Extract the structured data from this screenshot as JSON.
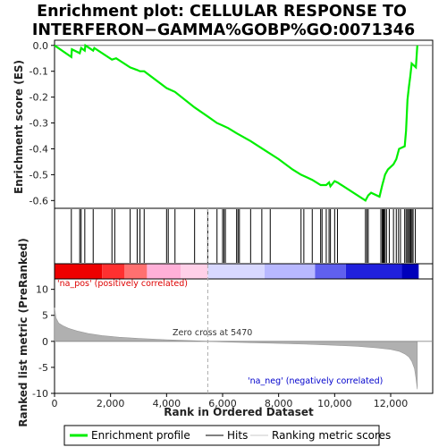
{
  "chart_data": {
    "type": "line",
    "title_line1": "Enrichment plot: CELLULAR RESPONSE TO",
    "title_line2": "INTERFERON−GAMMA%GOBP%GO:0071346",
    "xlabel": "Rank in Ordered Dataset",
    "ylabel_top": "Enrichment score (ES)",
    "ylabel_bottom": "Ranked list metric (PreRanked)",
    "xlim": [
      0,
      13500
    ],
    "x_ticks": [
      0,
      2000,
      4000,
      6000,
      8000,
      10000,
      12000
    ],
    "x_tick_labels": [
      "0",
      "2,000",
      "4,000",
      "6,000",
      "8,000",
      "10,000",
      "12,000"
    ],
    "es_ylim": [
      -0.63,
      0.02
    ],
    "es_ticks": [
      0.0,
      -0.1,
      -0.2,
      -0.3,
      -0.4,
      -0.5,
      -0.6
    ],
    "es_tick_labels": [
      "0.0",
      "-0.1",
      "-0.2",
      "-0.3",
      "-0.4",
      "-0.5",
      "-0.6"
    ],
    "metric_ylim": [
      -10,
      12
    ],
    "metric_ticks": [
      10,
      5,
      0,
      -5,
      -10
    ],
    "metric_tick_labels": [
      "10",
      "5",
      "0",
      "-5",
      "-10"
    ],
    "zero_cross_label": "Zero cross at 5470",
    "zero_cross_rank": 5470,
    "pos_label": "'na_pos' (positively correlated)",
    "neg_label": "'na_neg' (negatively correlated)",
    "colors": {
      "es_line": "#00ee00",
      "metric_fill": "#b0b0b0",
      "pos_text": "#dd0000",
      "neg_text": "#0000cc"
    },
    "legend": [
      {
        "label": "Enrichment profile",
        "style": "green-line"
      },
      {
        "label": "Hits",
        "style": "black-line"
      },
      {
        "label": "Ranking metric scores",
        "style": "gray-line"
      }
    ],
    "es_profile": {
      "x": [
        0,
        600,
        620,
        900,
        950,
        1080,
        1100,
        1380,
        1420,
        2050,
        2200,
        2700,
        2950,
        3050,
        3200,
        4000,
        4100,
        4300,
        5000,
        5470,
        5800,
        6000,
        6200,
        6500,
        7000,
        7500,
        8000,
        8500,
        8800,
        9000,
        9200,
        9500,
        9700,
        9800,
        9850,
        10000,
        10100,
        11100,
        11200,
        11300,
        11600,
        11700,
        11750,
        11800,
        11900,
        12000,
        12100,
        12200,
        12300,
        12500,
        12550,
        12600,
        12650,
        12700,
        12750,
        12900,
        12950
      ],
      "y": [
        0.0,
        -0.045,
        -0.015,
        -0.03,
        -0.01,
        -0.02,
        0.0,
        -0.02,
        -0.01,
        -0.055,
        -0.05,
        -0.085,
        -0.095,
        -0.1,
        -0.1,
        -0.165,
        -0.17,
        -0.18,
        -0.24,
        -0.275,
        -0.3,
        -0.31,
        -0.32,
        -0.34,
        -0.37,
        -0.405,
        -0.44,
        -0.48,
        -0.5,
        -0.51,
        -0.52,
        -0.54,
        -0.54,
        -0.53,
        -0.545,
        -0.525,
        -0.53,
        -0.6,
        -0.58,
        -0.57,
        -0.585,
        -0.54,
        -0.52,
        -0.5,
        -0.48,
        -0.47,
        -0.46,
        -0.44,
        -0.4,
        -0.39,
        -0.33,
        -0.21,
        -0.16,
        -0.12,
        -0.07,
        -0.085,
        0.0
      ]
    },
    "hits": [
      600,
      900,
      950,
      1080,
      1380,
      2050,
      2150,
      2700,
      2950,
      3050,
      3200,
      4000,
      4060,
      4300,
      5000,
      5470,
      5800,
      6000,
      6050,
      6100,
      6500,
      6550,
      6600,
      7000,
      7400,
      7700,
      8800,
      8900,
      9200,
      9500,
      9550,
      9700,
      9800,
      9850,
      10000,
      10100,
      11100,
      11150,
      11200,
      11650,
      11700,
      11730,
      11760,
      11800,
      11850,
      11950,
      12100,
      12200,
      12280,
      12350,
      12500,
      12550,
      12600,
      12640,
      12680,
      12720,
      12760,
      12800,
      12880
    ],
    "metric_profile": {
      "x": [
        0,
        50,
        150,
        300,
        500,
        800,
        1200,
        1700,
        2300,
        3000,
        4000,
        5000,
        5470,
        6000,
        7000,
        8000,
        9000,
        10000,
        10800,
        11500,
        12000,
        12300,
        12500,
        12650,
        12750,
        12850,
        12900,
        12950
      ],
      "y": [
        6.5,
        4.5,
        3.5,
        3.0,
        2.5,
        2.0,
        1.5,
        1.1,
        0.8,
        0.55,
        0.3,
        0.1,
        0.0,
        -0.1,
        -0.25,
        -0.4,
        -0.55,
        -0.75,
        -0.95,
        -1.25,
        -1.55,
        -1.9,
        -2.4,
        -3.0,
        -3.8,
        -5.2,
        -7.0,
        -9.2
      ]
    },
    "heatmap": [
      {
        "from": 0,
        "to": 1700,
        "color": "#ee0000"
      },
      {
        "from": 1700,
        "to": 2500,
        "color": "#ff3030"
      },
      {
        "from": 2500,
        "to": 3300,
        "color": "#ff7070"
      },
      {
        "from": 3300,
        "to": 4500,
        "color": "#ffb0d8"
      },
      {
        "from": 4500,
        "to": 5470,
        "color": "#ffd0e8"
      },
      {
        "from": 5470,
        "to": 7500,
        "color": "#d8d8ff"
      },
      {
        "from": 7500,
        "to": 9300,
        "color": "#b8b8ff"
      },
      {
        "from": 9300,
        "to": 10400,
        "color": "#6060ee"
      },
      {
        "from": 10400,
        "to": 12400,
        "color": "#2020dd"
      },
      {
        "from": 12400,
        "to": 13000,
        "color": "#0000bb"
      }
    ]
  }
}
